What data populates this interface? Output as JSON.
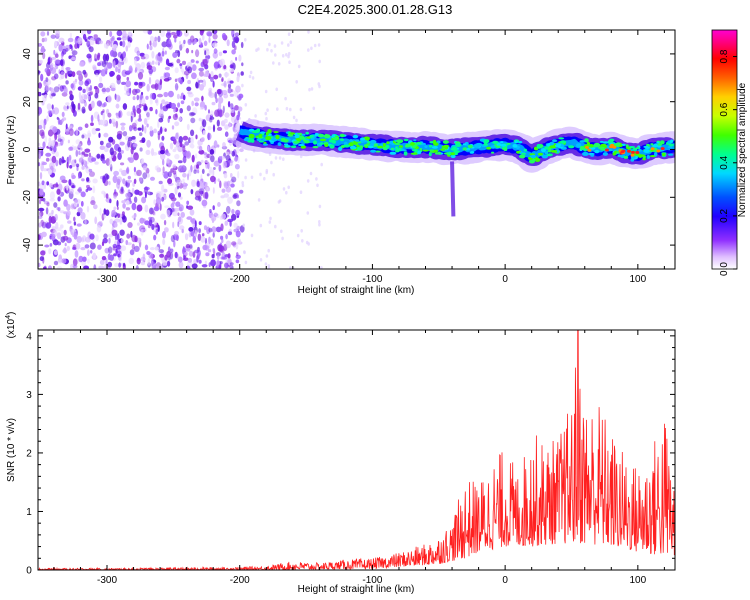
{
  "figure": {
    "title": "C2E4.2025.300.01.28.G13"
  },
  "chart_data": [
    {
      "type": "heatmap",
      "name": "spectrogram",
      "xlabel": "Height of straight line (km)",
      "ylabel": "Frequency (Hz)",
      "xlim": [
        -352,
        128
      ],
      "ylim": [
        -50,
        50
      ],
      "xticks": [
        -300,
        -200,
        -100,
        0,
        100
      ],
      "yticks": [
        -40,
        -20,
        0,
        20,
        40
      ],
      "colorbar": {
        "label": "Normalized spectral amplitude",
        "range": [
          0,
          0.9
        ],
        "ticks": [
          0.0,
          0.2,
          0.4,
          0.6,
          0.8
        ],
        "colors": [
          "#ffffff",
          "#d8a8ff",
          "#8a2be2",
          "#4010ff",
          "#0000ff",
          "#0080ff",
          "#00e0ff",
          "#00ff80",
          "#40ff00",
          "#c0ff00",
          "#ffd000",
          "#ff6000",
          "#ff0000",
          "#ff0080",
          "#ff00d0"
        ]
      },
      "band_center_hz": [
        [
          -200,
          8
        ],
        [
          -190,
          6
        ],
        [
          -180,
          5
        ],
        [
          -160,
          4
        ],
        [
          -140,
          4
        ],
        [
          -120,
          3
        ],
        [
          -100,
          2
        ],
        [
          -80,
          1
        ],
        [
          -60,
          1
        ],
        [
          -40,
          0
        ],
        [
          -20,
          1
        ],
        [
          0,
          2
        ],
        [
          10,
          1
        ],
        [
          20,
          -3
        ],
        [
          30,
          0
        ],
        [
          40,
          2
        ],
        [
          50,
          3
        ],
        [
          60,
          1
        ],
        [
          70,
          0
        ],
        [
          80,
          1
        ],
        [
          90,
          -1
        ],
        [
          100,
          -2
        ],
        [
          110,
          0
        ],
        [
          128,
          1
        ]
      ],
      "noise_region_x": [
        -352,
        -198
      ]
    },
    {
      "type": "line",
      "name": "snr",
      "xlabel": "Height of straight line (km)",
      "ylabel": "SNR (10 * v/v)",
      "scale_label": "(x10",
      "scale_exponent": "4",
      "xlim": [
        -352,
        128
      ],
      "ylim": [
        0,
        4.1
      ],
      "xticks": [
        -300,
        -200,
        -100,
        0,
        100
      ],
      "yticks": [
        0,
        1,
        2,
        3,
        4
      ],
      "color": "#ff2020",
      "envelope": [
        [
          -352,
          0.03
        ],
        [
          -300,
          0.03
        ],
        [
          -250,
          0.04
        ],
        [
          -200,
          0.05
        ],
        [
          -180,
          0.07
        ],
        [
          -160,
          0.15
        ],
        [
          -140,
          0.12
        ],
        [
          -120,
          0.18
        ],
        [
          -100,
          0.2
        ],
        [
          -80,
          0.3
        ],
        [
          -60,
          0.45
        ],
        [
          -50,
          0.6
        ],
        [
          -40,
          0.85
        ],
        [
          -30,
          1.6
        ],
        [
          -20,
          1.5
        ],
        [
          -10,
          1.9
        ],
        [
          0,
          2.1
        ],
        [
          10,
          1.7
        ],
        [
          20,
          2.4
        ],
        [
          30,
          2.2
        ],
        [
          40,
          2.3
        ],
        [
          50,
          2.9
        ],
        [
          55,
          4.1
        ],
        [
          60,
          2.9
        ],
        [
          70,
          3.0
        ],
        [
          80,
          2.4
        ],
        [
          90,
          2.0
        ],
        [
          100,
          1.8
        ],
        [
          110,
          2.1
        ],
        [
          120,
          2.8
        ],
        [
          128,
          1.6
        ]
      ],
      "floor": [
        [
          -352,
          0.0
        ],
        [
          -200,
          0.0
        ],
        [
          -100,
          0.02
        ],
        [
          -50,
          0.1
        ],
        [
          -30,
          0.2
        ],
        [
          -20,
          0.3
        ],
        [
          0,
          0.4
        ],
        [
          20,
          0.4
        ],
        [
          40,
          0.45
        ],
        [
          60,
          0.45
        ],
        [
          80,
          0.4
        ],
        [
          100,
          0.3
        ],
        [
          128,
          0.2
        ]
      ],
      "peak": [
        55,
        4.1
      ]
    }
  ]
}
